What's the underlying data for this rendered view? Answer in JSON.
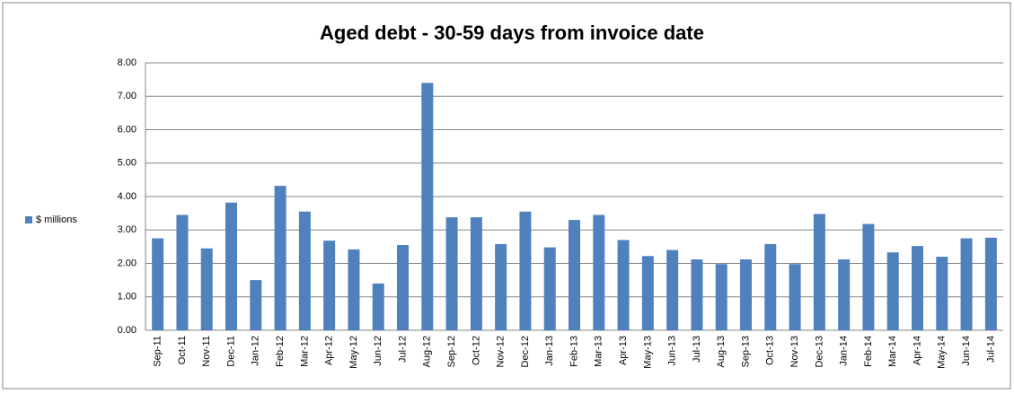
{
  "chart_data": {
    "type": "bar",
    "title": "Aged debt - 30-59 days from invoice date",
    "categories": [
      "Sep-11",
      "Oct-11",
      "Nov-11",
      "Dec-11",
      "Jan-12",
      "Feb-12",
      "Mar-12",
      "Apr-12",
      "May-12",
      "Jun-12",
      "Jul-12",
      "Aug-12",
      "Sep-12",
      "Oct-12",
      "Nov-12",
      "Dec-12",
      "Jan-13",
      "Feb-13",
      "Mar-13",
      "Apr-13",
      "May-13",
      "Jun-13",
      "Jul-13",
      "Aug-13",
      "Sep-13",
      "Oct-13",
      "Nov-13",
      "Dec-13",
      "Jan-14",
      "Feb-14",
      "Mar-14",
      "Apr-14",
      "May-14",
      "Jun-14",
      "Jul-14"
    ],
    "series": [
      {
        "name": "$ millions",
        "color": "#4f81bd",
        "values": [
          2.75,
          3.45,
          2.45,
          3.82,
          1.5,
          4.32,
          3.55,
          2.68,
          2.42,
          1.4,
          2.55,
          7.4,
          3.38,
          3.38,
          2.58,
          3.55,
          2.48,
          3.3,
          3.45,
          2.7,
          2.22,
          2.4,
          2.12,
          1.98,
          2.12,
          2.58,
          1.98,
          3.48,
          2.12,
          3.18,
          2.33,
          2.52,
          2.2,
          2.75,
          2.77
        ]
      }
    ],
    "ylim": [
      0,
      8
    ],
    "yticks": [
      {
        "value": 0,
        "label": "0.00"
      },
      {
        "value": 1,
        "label": "1.00"
      },
      {
        "value": 2,
        "label": "2.00"
      },
      {
        "value": 3,
        "label": "3.00"
      },
      {
        "value": 4,
        "label": "4.00"
      },
      {
        "value": 5,
        "label": "5.00"
      },
      {
        "value": 6,
        "label": "6.00"
      },
      {
        "value": 7,
        "label": "7.00"
      },
      {
        "value": 8,
        "label": "8.00"
      }
    ],
    "grid": true,
    "legend": "left"
  }
}
